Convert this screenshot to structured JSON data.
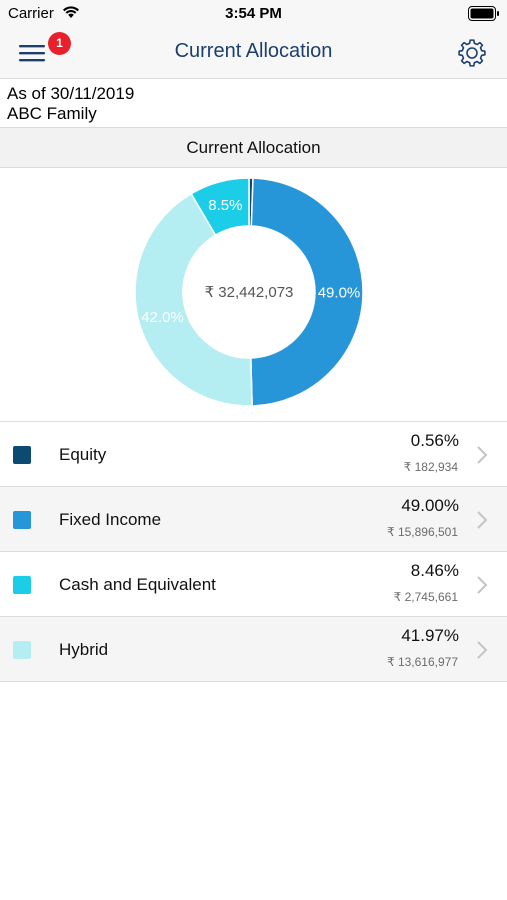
{
  "status_bar": {
    "carrier": "Carrier",
    "time": "3:54 PM"
  },
  "nav": {
    "title": "Current Allocation",
    "menu_icon": "hamburger-menu-icon",
    "badge_count": "1",
    "settings_icon": "gear-icon"
  },
  "as_of": {
    "date_line": "As of 30/11/2019",
    "family": "ABC Family"
  },
  "section": {
    "title": "Current Allocation"
  },
  "colors": {
    "equity": "#0d4a72",
    "fixed_income": "#2696d9",
    "cash": "#1bcde6",
    "hybrid": "#b4edf2",
    "nav_title": "#1c3f6e",
    "badge": "#e8202b"
  },
  "chart_data": {
    "type": "pie",
    "center_label": "₹ 32,442,073",
    "slices": [
      {
        "name": "Equity",
        "value": 0.56,
        "color": "#0d4a72",
        "label": ""
      },
      {
        "name": "Fixed Income",
        "value": 49.0,
        "color": "#2696d9",
        "label": "49.0%"
      },
      {
        "name": "Hybrid",
        "value": 41.97,
        "color": "#b4edf2",
        "label": "42.0%"
      },
      {
        "name": "Cash and Equivalent",
        "value": 8.46,
        "color": "#1bcde6",
        "label": "8.5%"
      }
    ]
  },
  "allocations": [
    {
      "label": "Equity",
      "percent": "0.56%",
      "amount": "₹ 182,934",
      "color": "#0d4a72"
    },
    {
      "label": "Fixed Income",
      "percent": "49.00%",
      "amount": "₹ 15,896,501",
      "color": "#2696d9"
    },
    {
      "label": "Cash and Equivalent",
      "percent": "8.46%",
      "amount": "₹ 2,745,661",
      "color": "#1bcde6"
    },
    {
      "label": "Hybrid",
      "percent": "41.97%",
      "amount": "₹ 13,616,977",
      "color": "#b4edf2"
    }
  ]
}
